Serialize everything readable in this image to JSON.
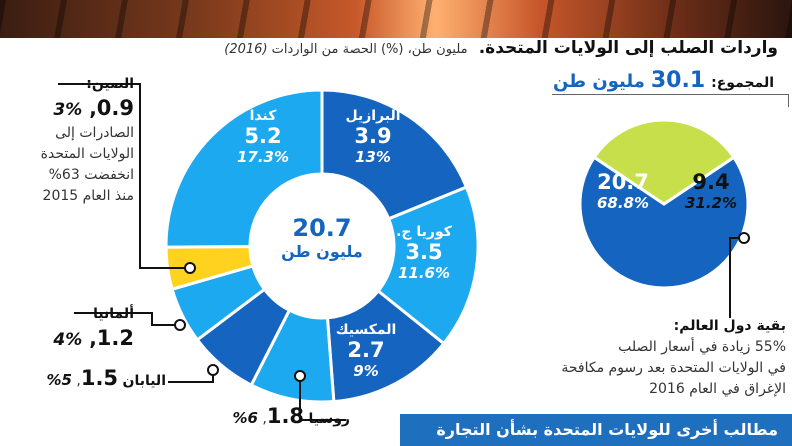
{
  "header": {
    "title": "واردات الصلب إلى الولايات المتحدة.",
    "subtitle": "مليون طن، (%) الحصة من الواردات",
    "year": "(2016)"
  },
  "total": {
    "label": "المجموع:",
    "value": "30.1",
    "unit": "مليون طن"
  },
  "donut_center": {
    "value": "20.7",
    "unit": "مليون طن"
  },
  "china_note": {
    "heading": "الصين:",
    "line1": "الصادرات إلى",
    "line2": "الولايات المتحدة",
    "line3": "انخفضت 63%",
    "line4": "منذ العام 2015"
  },
  "rest_note": {
    "heading": "بقية دول العالم:",
    "line1": "55% زيادة في أسعار الصلب",
    "line2": "في الولايات المتحدة بعد رسوم مكافحة",
    "line3": "الإغراق في العام 2016"
  },
  "footer": {
    "text": "مطالب أخرى للولايات المتحدة بشأن التجارة"
  },
  "colors": {
    "dark_blue": "#1565c0",
    "light_blue": "#1da9ef",
    "yellow": "#ffd21f",
    "lime": "#c7df4a"
  },
  "chart_data": [
    {
      "type": "pie",
      "variant": "donut",
      "unit": "مليون طن",
      "categories": [
        "البرازيل",
        "كوريا ج.",
        "المكسيك",
        "روسيا",
        "اليابان",
        "ألمانيا",
        "الصين",
        "كندا"
      ],
      "values": [
        3.9,
        3.5,
        2.7,
        1.8,
        1.5,
        1.2,
        0.9,
        5.2
      ],
      "share_labels": [
        "13%",
        "11.6%",
        "9%",
        "6%",
        "5%",
        "4%",
        "3%",
        "17.3%"
      ],
      "value_labels": [
        "3.9",
        "3.5",
        "2.7",
        "1.8",
        "1.5",
        "1.2",
        "0.9",
        "5.2"
      ],
      "center_total": 20.7
    },
    {
      "type": "pie",
      "unit": "مليون طن",
      "values": [
        20.7,
        9.4
      ],
      "share_labels": [
        "68.8%",
        "31.2%"
      ],
      "value_labels": [
        "20.7",
        "9.4"
      ]
    }
  ]
}
